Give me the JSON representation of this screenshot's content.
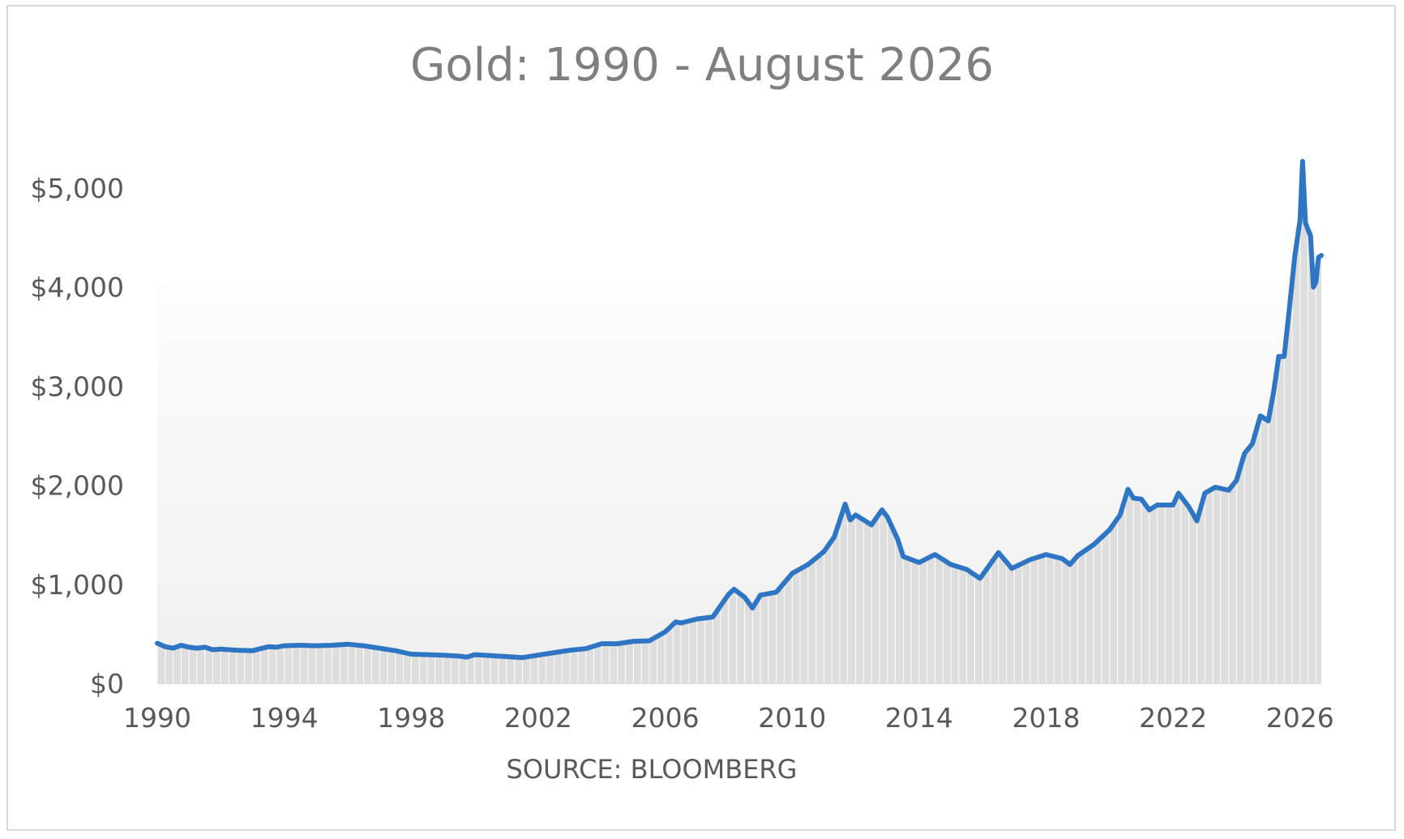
{
  "chart_data": {
    "type": "area",
    "title": "Gold: 1990 - August 2026",
    "xlabel": "SOURCE: BLOOMBERG",
    "ylabel": "",
    "xlim": [
      1990,
      2026.67
    ],
    "ylim": [
      0,
      5000
    ],
    "y_ticks": [
      0,
      1000,
      2000,
      3000,
      4000,
      5000
    ],
    "y_tick_labels": [
      "$0",
      "$1,000",
      "$2,000",
      "$3,000",
      "$4,000",
      "$5,000"
    ],
    "x_ticks": [
      1990,
      1994,
      1998,
      2002,
      2006,
      2010,
      2014,
      2018,
      2022,
      2026
    ],
    "x_tick_labels": [
      "1990",
      "1994",
      "1998",
      "2002",
      "2006",
      "2010",
      "2014",
      "2018",
      "2022",
      "2026"
    ],
    "grid": false,
    "legend": "none",
    "colors": {
      "line": "#2e75c4",
      "area_fill": "#dedede",
      "area_bar_stroke": "#ffffff",
      "frame": "#d9d9d9"
    },
    "series": [
      {
        "x": [
          1990.0,
          1990.25,
          1990.5,
          1990.75,
          1991.0,
          1991.25,
          1991.5,
          1991.75,
          1992.0,
          1992.5,
          1993.0,
          1993.5,
          1993.75,
          1994.0,
          1994.5,
          1995.0,
          1995.5,
          1996.0,
          1996.5,
          1997.0,
          1997.5,
          1998.0,
          1998.5,
          1999.0,
          1999.5,
          1999.75,
          2000.0,
          2000.5,
          2001.0,
          2001.5,
          2002.0,
          2002.5,
          2003.0,
          2003.5,
          2004.0,
          2004.5,
          2005.0,
          2005.5,
          2006.0,
          2006.33,
          2006.5,
          2007.0,
          2007.5,
          2008.0,
          2008.17,
          2008.5,
          2008.75,
          2009.0,
          2009.5,
          2010.0,
          2010.5,
          2011.0,
          2011.33,
          2011.67,
          2011.83,
          2012.0,
          2012.5,
          2012.83,
          2013.0,
          2013.33,
          2013.5,
          2014.0,
          2014.5,
          2015.0,
          2015.5,
          2015.92,
          2016.5,
          2016.92,
          2017.5,
          2018.0,
          2018.5,
          2018.75,
          2019.0,
          2019.5,
          2020.0,
          2020.33,
          2020.58,
          2020.75,
          2021.0,
          2021.25,
          2021.5,
          2022.0,
          2022.17,
          2022.5,
          2022.75,
          2023.0,
          2023.33,
          2023.75,
          2024.0,
          2024.25,
          2024.5,
          2024.75,
          2025.0,
          2025.17,
          2025.33,
          2025.5,
          2025.67,
          2025.83,
          2026.0,
          2026.08,
          2026.17,
          2026.25,
          2026.33,
          2026.42,
          2026.5,
          2026.58,
          2026.67
        ],
        "values": [
          405,
          370,
          355,
          385,
          365,
          355,
          365,
          340,
          345,
          335,
          330,
          370,
          365,
          380,
          385,
          380,
          385,
          395,
          380,
          355,
          330,
          295,
          290,
          285,
          275,
          265,
          290,
          280,
          270,
          260,
          285,
          310,
          335,
          350,
          400,
          400,
          425,
          430,
          520,
          620,
          610,
          650,
          670,
          900,
          950,
          870,
          760,
          890,
          920,
          1110,
          1200,
          1330,
          1480,
          1810,
          1650,
          1700,
          1600,
          1750,
          1680,
          1450,
          1280,
          1220,
          1300,
          1200,
          1150,
          1060,
          1320,
          1160,
          1250,
          1300,
          1260,
          1200,
          1290,
          1400,
          1550,
          1700,
          1960,
          1870,
          1860,
          1750,
          1800,
          1800,
          1920,
          1780,
          1640,
          1920,
          1980,
          1950,
          2050,
          2320,
          2420,
          2700,
          2650,
          2950,
          3300,
          3300,
          3800,
          4300,
          4680,
          5270,
          4650,
          4580,
          4520,
          4000,
          4050,
          4300,
          4320
        ]
      }
    ]
  }
}
